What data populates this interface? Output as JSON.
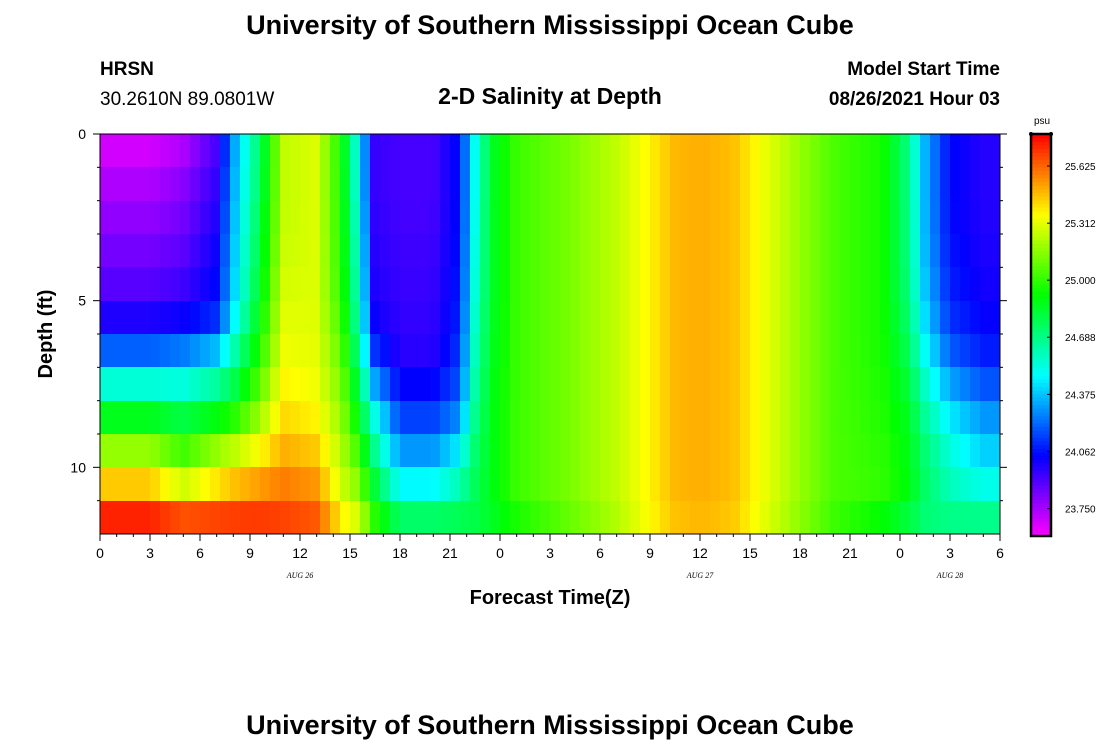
{
  "header": {
    "title_top": "University of Southern Mississippi Ocean Cube",
    "station": "HRSN",
    "coords": "30.2610N  89.0801W",
    "subtitle": "2-D Salinity at Depth",
    "model_label": "Model Start Time",
    "model_time": "08/26/2021 Hour 03",
    "title_bottom": "University of Southern Mississippi Ocean Cube"
  },
  "chart_data": {
    "type": "heatmap",
    "title": "2-D Salinity at Depth",
    "xlabel": "Forecast Time(Z)",
    "ylabel": "Depth (ft)",
    "x_range_hours": [
      0,
      54
    ],
    "y_range_ft": [
      0,
      12
    ],
    "x_tick_labels": [
      "0",
      "3",
      "6",
      "9",
      "12",
      "15",
      "18",
      "21",
      "0",
      "3",
      "6",
      "9",
      "12",
      "15",
      "18",
      "21",
      "0",
      "3",
      "6"
    ],
    "date_labels": [
      {
        "text": "AUG 26",
        "hour": 12
      },
      {
        "text": "AUG 27",
        "hour": 36
      },
      {
        "text": "AUG 28",
        "hour": 51
      }
    ],
    "y_tick_labels": [
      "0",
      "5",
      "10"
    ],
    "y_tick_values": [
      0,
      5,
      10
    ],
    "colorbar": {
      "unit": "psu",
      "range": [
        23.6,
        25.8
      ],
      "labels": [
        "25.625",
        "25.312",
        "25.000",
        "24.688",
        "24.375",
        "24.062",
        "23.750"
      ],
      "values": [
        25.625,
        25.312,
        25.0,
        24.688,
        24.375,
        24.062,
        23.75
      ]
    },
    "profile_depths_ft": [
      0,
      1,
      2,
      3,
      4,
      5,
      6,
      7,
      8,
      9,
      10,
      11,
      11.6
    ],
    "profiles": [
      {
        "hour": 0,
        "values": [
          23.64,
          23.72,
          23.76,
          23.82,
          23.86,
          23.92,
          24.06,
          24.35,
          24.75,
          25.0,
          25.35,
          25.55,
          25.78
        ]
      },
      {
        "hour": 3,
        "values": [
          23.64,
          23.72,
          23.76,
          23.82,
          23.86,
          23.92,
          24.06,
          24.35,
          24.75,
          25.0,
          25.35,
          25.55,
          25.78
        ]
      },
      {
        "hour": 5,
        "values": [
          23.7,
          23.78,
          23.82,
          23.86,
          23.9,
          23.96,
          24.08,
          24.42,
          24.65,
          24.95,
          25.1,
          25.45,
          25.7
        ]
      },
      {
        "hour": 7,
        "values": [
          23.9,
          23.94,
          23.97,
          24.0,
          24.04,
          24.06,
          24.18,
          24.55,
          24.75,
          25.05,
          25.3,
          25.5,
          25.72
        ]
      },
      {
        "hour": 8,
        "values": [
          24.3,
          24.32,
          24.34,
          24.36,
          24.38,
          24.4,
          24.5,
          24.7,
          24.85,
          25.1,
          25.38,
          25.55,
          25.72
        ]
      },
      {
        "hour": 9.5,
        "values": [
          24.72,
          24.72,
          24.75,
          24.78,
          24.8,
          24.85,
          24.9,
          25.0,
          25.1,
          25.25,
          25.45,
          25.6,
          25.72
        ]
      },
      {
        "hour": 11,
        "values": [
          25.25,
          25.25,
          25.25,
          25.26,
          25.27,
          25.3,
          25.32,
          25.35,
          25.4,
          25.45,
          25.55,
          25.62,
          25.7
        ]
      },
      {
        "hour": 13,
        "values": [
          25.3,
          25.3,
          25.3,
          25.3,
          25.3,
          25.3,
          25.31,
          25.32,
          25.35,
          25.4,
          25.5,
          25.58,
          25.66
        ]
      },
      {
        "hour": 14.5,
        "values": [
          24.95,
          24.95,
          24.96,
          24.97,
          24.98,
          25.0,
          25.05,
          25.1,
          25.15,
          25.2,
          25.25,
          25.3,
          25.4
        ]
      },
      {
        "hour": 15.5,
        "values": [
          24.5,
          24.5,
          24.52,
          24.55,
          24.57,
          24.6,
          24.65,
          24.75,
          24.85,
          24.95,
          25.1,
          25.2,
          25.3
        ]
      },
      {
        "hour": 16.5,
        "values": [
          23.95,
          23.95,
          23.95,
          23.97,
          23.98,
          24.0,
          24.05,
          24.2,
          24.45,
          24.6,
          24.75,
          24.9,
          25.0
        ]
      },
      {
        "hour": 18,
        "values": [
          23.92,
          23.92,
          23.92,
          23.93,
          23.94,
          23.95,
          23.96,
          23.98,
          24.1,
          24.2,
          24.4,
          24.55,
          24.78
        ]
      },
      {
        "hour": 20,
        "values": [
          23.92,
          23.92,
          23.92,
          23.93,
          23.94,
          23.95,
          23.96,
          23.98,
          24.1,
          24.2,
          24.4,
          24.55,
          24.78
        ]
      },
      {
        "hour": 21.5,
        "values": [
          24.05,
          24.05,
          24.05,
          24.06,
          24.07,
          24.08,
          24.1,
          24.15,
          24.2,
          24.35,
          24.55,
          24.65,
          24.8
        ]
      },
      {
        "hour": 22.5,
        "values": [
          24.5,
          24.5,
          24.5,
          24.52,
          24.53,
          24.55,
          24.58,
          24.6,
          24.65,
          24.7,
          24.75,
          24.78,
          24.8
        ]
      },
      {
        "hour": 23.5,
        "values": [
          24.85,
          24.85,
          24.85,
          24.85,
          24.85,
          24.85,
          24.86,
          24.87,
          24.88,
          24.88,
          24.88,
          24.88,
          24.85
        ]
      },
      {
        "hour": 25,
        "values": [
          25.02,
          25.02,
          25.02,
          25.02,
          25.02,
          25.02,
          25.02,
          25.02,
          25.02,
          25.02,
          25.02,
          25.02,
          24.95
        ]
      },
      {
        "hour": 28,
        "values": [
          25.12,
          25.12,
          25.12,
          25.12,
          25.12,
          25.12,
          25.12,
          25.12,
          25.12,
          25.12,
          25.12,
          25.12,
          25.08
        ]
      },
      {
        "hour": 31,
        "values": [
          25.25,
          25.25,
          25.25,
          25.25,
          25.25,
          25.25,
          25.25,
          25.25,
          25.25,
          25.25,
          25.25,
          25.25,
          25.22
        ]
      },
      {
        "hour": 33,
        "values": [
          25.38,
          25.38,
          25.38,
          25.38,
          25.38,
          25.38,
          25.38,
          25.38,
          25.38,
          25.38,
          25.38,
          25.38,
          25.36
        ]
      },
      {
        "hour": 34.5,
        "values": [
          25.48,
          25.48,
          25.48,
          25.48,
          25.48,
          25.48,
          25.48,
          25.48,
          25.48,
          25.48,
          25.48,
          25.48,
          25.46
        ]
      },
      {
        "hour": 36,
        "values": [
          25.5,
          25.5,
          25.5,
          25.5,
          25.5,
          25.5,
          25.5,
          25.5,
          25.5,
          25.5,
          25.5,
          25.5,
          25.48
        ]
      },
      {
        "hour": 38,
        "values": [
          25.47,
          25.47,
          25.47,
          25.47,
          25.47,
          25.47,
          25.47,
          25.47,
          25.47,
          25.47,
          25.47,
          25.47,
          25.45
        ]
      },
      {
        "hour": 40,
        "values": [
          25.32,
          25.32,
          25.32,
          25.32,
          25.32,
          25.32,
          25.32,
          25.32,
          25.32,
          25.32,
          25.32,
          25.32,
          25.3
        ]
      },
      {
        "hour": 42,
        "values": [
          25.18,
          25.18,
          25.18,
          25.18,
          25.18,
          25.18,
          25.18,
          25.18,
          25.18,
          25.18,
          25.18,
          25.18,
          25.16
        ]
      },
      {
        "hour": 44,
        "values": [
          25.05,
          25.05,
          25.05,
          25.05,
          25.05,
          25.05,
          25.05,
          25.05,
          25.05,
          25.05,
          25.05,
          25.05,
          25.02
        ]
      },
      {
        "hour": 47,
        "values": [
          24.95,
          24.95,
          24.95,
          24.95,
          24.95,
          24.95,
          24.95,
          24.96,
          24.97,
          24.98,
          25.0,
          25.0,
          24.9
        ]
      },
      {
        "hour": 48.5,
        "values": [
          24.7,
          24.7,
          24.7,
          24.7,
          24.7,
          24.72,
          24.75,
          24.8,
          24.85,
          24.88,
          24.9,
          24.9,
          24.8
        ]
      },
      {
        "hour": 49.5,
        "values": [
          24.35,
          24.35,
          24.35,
          24.36,
          24.37,
          24.4,
          24.45,
          24.55,
          24.62,
          24.7,
          24.75,
          24.75,
          24.72
        ]
      },
      {
        "hour": 51,
        "values": [
          24.05,
          24.05,
          24.05,
          24.06,
          24.08,
          24.1,
          24.15,
          24.25,
          24.4,
          24.5,
          24.58,
          24.62,
          24.7
        ]
      },
      {
        "hour": 53,
        "values": [
          23.98,
          23.98,
          23.98,
          23.99,
          24.0,
          24.02,
          24.05,
          24.12,
          24.25,
          24.35,
          24.45,
          24.58,
          24.7
        ]
      },
      {
        "hour": 54,
        "values": [
          23.98,
          23.98,
          23.98,
          23.99,
          24.0,
          24.02,
          24.05,
          24.12,
          24.25,
          24.35,
          24.45,
          24.58,
          24.7
        ]
      }
    ]
  }
}
